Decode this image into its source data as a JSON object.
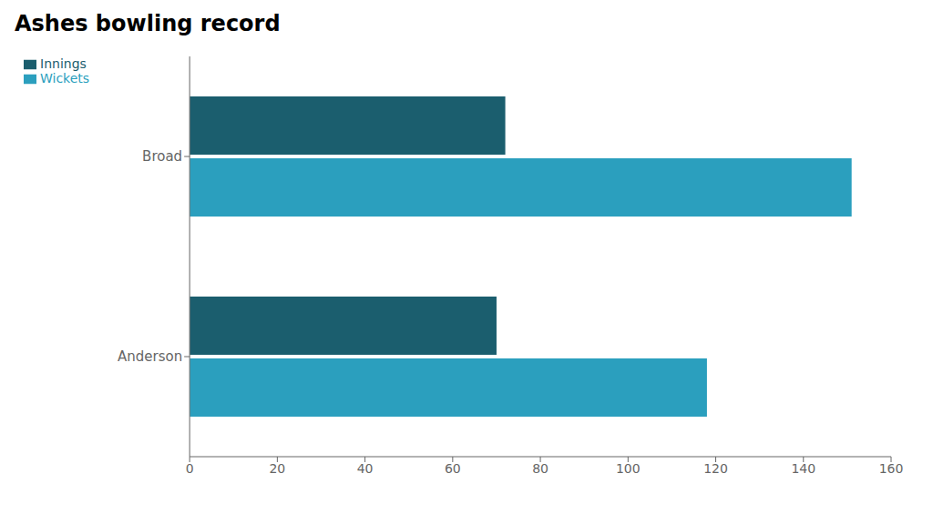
{
  "chart_data": {
    "type": "bar",
    "orientation": "horizontal",
    "title": "Ashes bowling record",
    "categories": [
      "Broad",
      "Anderson"
    ],
    "series": [
      {
        "name": "Innings",
        "color": "#1b5e6e",
        "values": [
          72,
          70
        ]
      },
      {
        "name": "Wickets",
        "color": "#2b9fbe",
        "values": [
          151,
          118
        ]
      }
    ],
    "xlim": [
      0,
      160
    ],
    "xticks": [
      0,
      20,
      40,
      60,
      80,
      100,
      120,
      140,
      160
    ],
    "grid": false,
    "legend": "top-left"
  }
}
